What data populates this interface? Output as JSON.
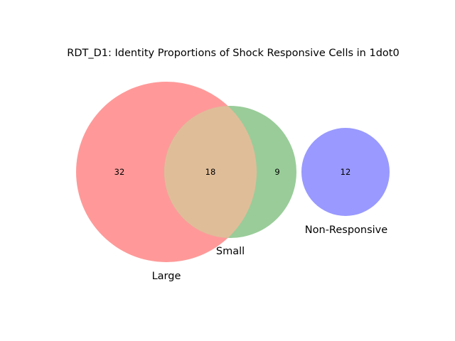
{
  "chart_data": {
    "type": "venn",
    "title": "RDT_D1: Identity Proportions of Shock Responsive Cells in 1dot0",
    "sets": [
      {
        "name": "Large",
        "color": "#ff9999"
      },
      {
        "name": "Small",
        "color": "#99cc99"
      },
      {
        "name": "Non-Responsive",
        "color": "#9999ff"
      }
    ],
    "regions": [
      {
        "sets": [
          "Large"
        ],
        "value": 32
      },
      {
        "sets": [
          "Large",
          "Small"
        ],
        "value": 18
      },
      {
        "sets": [
          "Small"
        ],
        "value": 9
      },
      {
        "sets": [
          "Non-Responsive"
        ],
        "value": 12
      }
    ],
    "overlap_color": "#e0bd99"
  }
}
